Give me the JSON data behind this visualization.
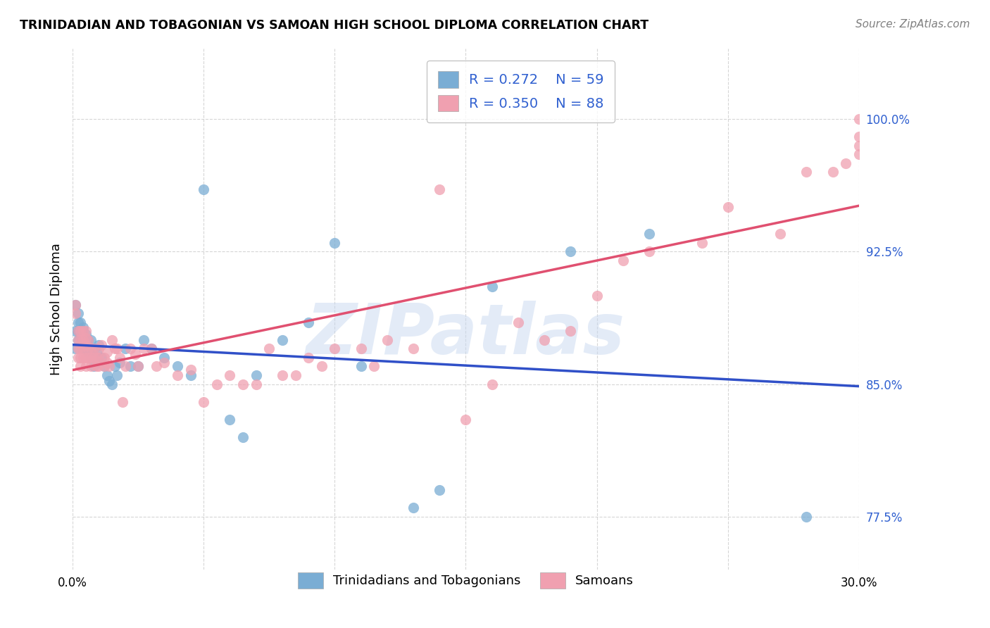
{
  "title": "TRINIDADIAN AND TOBAGONIAN VS SAMOAN HIGH SCHOOL DIPLOMA CORRELATION CHART",
  "source": "Source: ZipAtlas.com",
  "xlabel": "",
  "ylabel": "High School Diploma",
  "xlim": [
    0.0,
    0.3
  ],
  "ylim": [
    0.745,
    1.04
  ],
  "xticks": [
    0.0,
    0.05,
    0.1,
    0.15,
    0.2,
    0.25,
    0.3
  ],
  "xticklabels": [
    "0.0%",
    "",
    "",
    "",
    "",
    "",
    "30.0%"
  ],
  "yticks": [
    0.775,
    0.85,
    0.925,
    1.0
  ],
  "yticklabels": [
    "77.5%",
    "85.0%",
    "92.5%",
    "100.0%"
  ],
  "blue_color": "#7aadd4",
  "pink_color": "#f0a0b0",
  "blue_line_color": "#3050c8",
  "pink_line_color": "#e05070",
  "legend_R1": "R = 0.272",
  "legend_N1": "N = 59",
  "legend_R2": "R = 0.350",
  "legend_N2": "N = 88",
  "label1": "Trinidadians and Tobagonians",
  "label2": "Samoans",
  "watermark": "ZIPatlas",
  "blue_x": [
    0.001,
    0.001,
    0.001,
    0.002,
    0.002,
    0.002,
    0.002,
    0.002,
    0.003,
    0.003,
    0.003,
    0.003,
    0.004,
    0.004,
    0.004,
    0.004,
    0.005,
    0.005,
    0.005,
    0.005,
    0.006,
    0.006,
    0.007,
    0.007,
    0.008,
    0.008,
    0.009,
    0.01,
    0.01,
    0.011,
    0.012,
    0.013,
    0.014,
    0.015,
    0.016,
    0.017,
    0.018,
    0.02,
    0.022,
    0.025,
    0.027,
    0.03,
    0.035,
    0.04,
    0.045,
    0.05,
    0.06,
    0.065,
    0.07,
    0.08,
    0.09,
    0.1,
    0.11,
    0.13,
    0.14,
    0.16,
    0.19,
    0.22,
    0.28
  ],
  "blue_y": [
    0.87,
    0.88,
    0.895,
    0.88,
    0.875,
    0.88,
    0.885,
    0.89,
    0.875,
    0.877,
    0.88,
    0.885,
    0.87,
    0.875,
    0.88,
    0.882,
    0.87,
    0.872,
    0.875,
    0.878,
    0.868,
    0.875,
    0.865,
    0.875,
    0.86,
    0.87,
    0.868,
    0.862,
    0.872,
    0.865,
    0.86,
    0.855,
    0.852,
    0.85,
    0.86,
    0.855,
    0.862,
    0.87,
    0.86,
    0.86,
    0.875,
    0.87,
    0.865,
    0.86,
    0.855,
    0.96,
    0.83,
    0.82,
    0.855,
    0.875,
    0.885,
    0.93,
    0.86,
    0.78,
    0.79,
    0.905,
    0.925,
    0.935,
    0.775
  ],
  "pink_x": [
    0.001,
    0.001,
    0.002,
    0.002,
    0.002,
    0.002,
    0.003,
    0.003,
    0.003,
    0.003,
    0.003,
    0.004,
    0.004,
    0.004,
    0.004,
    0.005,
    0.005,
    0.005,
    0.005,
    0.005,
    0.006,
    0.006,
    0.006,
    0.007,
    0.007,
    0.007,
    0.008,
    0.008,
    0.009,
    0.009,
    0.01,
    0.01,
    0.01,
    0.011,
    0.012,
    0.012,
    0.013,
    0.013,
    0.014,
    0.015,
    0.016,
    0.017,
    0.018,
    0.019,
    0.02,
    0.022,
    0.024,
    0.025,
    0.027,
    0.03,
    0.032,
    0.035,
    0.04,
    0.045,
    0.05,
    0.055,
    0.06,
    0.065,
    0.07,
    0.075,
    0.08,
    0.085,
    0.09,
    0.095,
    0.1,
    0.11,
    0.115,
    0.12,
    0.13,
    0.14,
    0.15,
    0.16,
    0.17,
    0.18,
    0.19,
    0.2,
    0.21,
    0.22,
    0.24,
    0.25,
    0.27,
    0.28,
    0.29,
    0.295,
    0.3,
    0.3,
    0.3,
    0.3
  ],
  "pink_y": [
    0.895,
    0.89,
    0.88,
    0.875,
    0.87,
    0.865,
    0.88,
    0.875,
    0.87,
    0.865,
    0.86,
    0.88,
    0.875,
    0.87,
    0.865,
    0.88,
    0.876,
    0.872,
    0.865,
    0.86,
    0.875,
    0.87,
    0.865,
    0.87,
    0.865,
    0.86,
    0.87,
    0.865,
    0.865,
    0.86,
    0.87,
    0.865,
    0.86,
    0.872,
    0.865,
    0.86,
    0.868,
    0.862,
    0.86,
    0.875,
    0.87,
    0.87,
    0.865,
    0.84,
    0.86,
    0.87,
    0.867,
    0.86,
    0.87,
    0.87,
    0.86,
    0.862,
    0.855,
    0.858,
    0.84,
    0.85,
    0.855,
    0.85,
    0.85,
    0.87,
    0.855,
    0.855,
    0.865,
    0.86,
    0.87,
    0.87,
    0.86,
    0.875,
    0.87,
    0.96,
    0.83,
    0.85,
    0.885,
    0.875,
    0.88,
    0.9,
    0.92,
    0.925,
    0.93,
    0.95,
    0.935,
    0.97,
    0.97,
    0.975,
    0.98,
    0.985,
    0.99,
    1.0
  ]
}
